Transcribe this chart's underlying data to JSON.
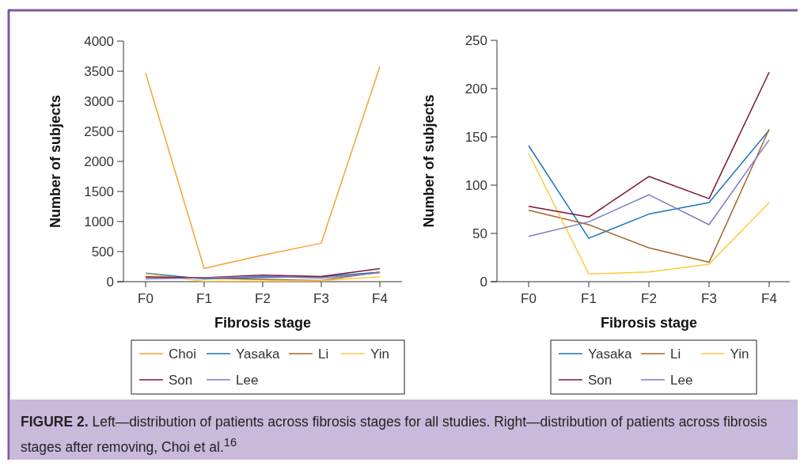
{
  "chart_data": [
    {
      "type": "line",
      "xlabel": "Fibrosis stage",
      "ylabel": "Number of subjects",
      "categories": [
        "F0",
        "F1",
        "F2",
        "F3",
        "F4"
      ],
      "ylim": [
        0,
        4000
      ],
      "yticks": [
        0,
        500,
        1000,
        1500,
        2000,
        2500,
        3000,
        3500,
        4000
      ],
      "grid": false,
      "legend": "bottom",
      "series": [
        {
          "name": "Choi",
          "color": "#f7a133",
          "values": [
            3470,
            220,
            440,
            640,
            3580
          ]
        },
        {
          "name": "Yasaka",
          "color": "#1a75bb",
          "values": [
            141,
            45,
            70,
            82,
            157
          ]
        },
        {
          "name": "Li",
          "color": "#a8652a",
          "values": [
            74,
            59,
            35,
            20,
            158
          ]
        },
        {
          "name": "Yin",
          "color": "#fdc93f",
          "values": [
            133,
            8,
            10,
            18,
            82
          ]
        },
        {
          "name": "Son",
          "color": "#7e1431",
          "values": [
            78,
            67,
            109,
            86,
            217
          ]
        },
        {
          "name": "Lee",
          "color": "#7c7cc4",
          "values": [
            47,
            62,
            90,
            59,
            147
          ]
        }
      ],
      "annotations": [
        "FIGURE 2.",
        "Left—distribution of patients across fibrosis stages for all studies. Right—distribution of patients across fibrosis stages after removing, Choi et al.$^{16}$"
      ]
    },
    {
      "type": "line",
      "xlabel": "Fibrosis stage",
      "ylabel": "Number of subjects",
      "categories": [
        "F0",
        "F1",
        "F2",
        "F3",
        "F4"
      ],
      "ylim": [
        0,
        250
      ],
      "yticks": [
        0,
        50,
        100,
        150,
        200,
        250
      ],
      "grid": false,
      "legend": "bottom",
      "series": [
        {
          "name": "Yasaka",
          "color": "#1a75bb",
          "values": [
            141,
            45,
            70,
            82,
            157
          ]
        },
        {
          "name": "Li",
          "color": "#a8652a",
          "values": [
            74,
            59,
            35,
            20,
            158
          ]
        },
        {
          "name": "Yin",
          "color": "#fdc93f",
          "values": [
            133,
            8,
            10,
            18,
            82
          ]
        },
        {
          "name": "Son",
          "color": "#7e1431",
          "values": [
            78,
            67,
            109,
            86,
            217
          ]
        },
        {
          "name": "Lee",
          "color": "#7c7cc4",
          "values": [
            47,
            62,
            90,
            59,
            147
          ]
        }
      ]
    }
  ]
}
